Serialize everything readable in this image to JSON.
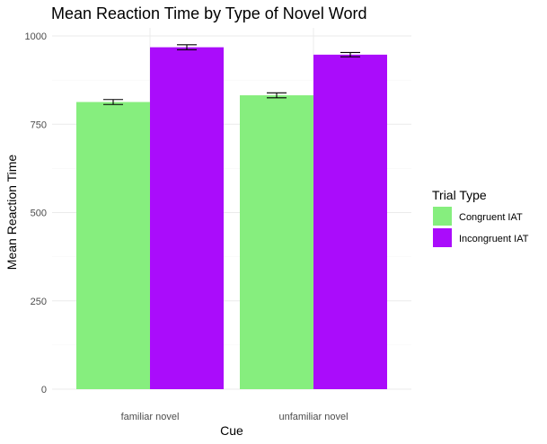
{
  "chart_data": {
    "type": "bar",
    "title": "Mean Reaction Time by Type of Novel Word",
    "xlabel": "Cue",
    "ylabel": "Mean Reaction Time",
    "categories": [
      "familiar novel",
      "unfamiliar novel"
    ],
    "series": [
      {
        "name": "Congruent IAT",
        "color": "#86ee7e",
        "values": [
          813,
          832
        ],
        "error_low": [
          806,
          825
        ],
        "error_high": [
          820,
          839
        ]
      },
      {
        "name": "Incongruent IAT",
        "color": "#aa0cfb",
        "values": [
          968,
          947
        ],
        "error_low": [
          961,
          941
        ],
        "error_high": [
          975,
          953
        ]
      }
    ],
    "ylim": [
      0,
      1000
    ],
    "yticks": [
      0,
      250,
      500,
      750,
      1000
    ],
    "ytick_labels": [
      "0",
      "250",
      "500",
      "750",
      "1000"
    ],
    "grid": true,
    "legend": {
      "title": "Trial Type",
      "position": "right"
    }
  }
}
